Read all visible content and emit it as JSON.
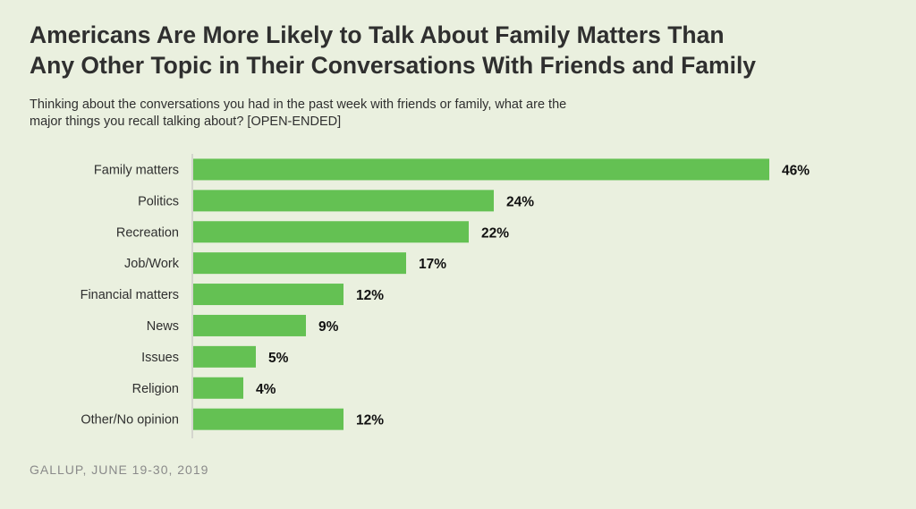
{
  "title_line1": "Americans Are More Likely to Talk About Family Matters Than",
  "title_line2": "Any Other Topic in Their Conversations With Friends and Family",
  "subtitle_line1": "Thinking about the conversations you had in the past week with friends or family, what are the",
  "subtitle_line2": "major things you recall talking about? [OPEN-ENDED]",
  "source": "GALLUP, JUNE 19-30, 2019",
  "colors": {
    "bar": "#64c153",
    "background": "#eaf0df",
    "axis": "#bdbdbd"
  },
  "chart_data": {
    "type": "bar",
    "orientation": "horizontal",
    "categories": [
      "Family matters",
      "Politics",
      "Recreation",
      "Job/Work",
      "Financial matters",
      "News",
      "Issues",
      "Religion",
      "Other/No opinion"
    ],
    "values": [
      46,
      24,
      22,
      17,
      12,
      9,
      5,
      4,
      12
    ],
    "value_labels": [
      "46%",
      "24%",
      "22%",
      "17%",
      "12%",
      "9%",
      "5%",
      "4%",
      "12%"
    ],
    "unit": "%",
    "xlim": [
      0,
      46
    ],
    "grid": false,
    "legend": "none"
  }
}
